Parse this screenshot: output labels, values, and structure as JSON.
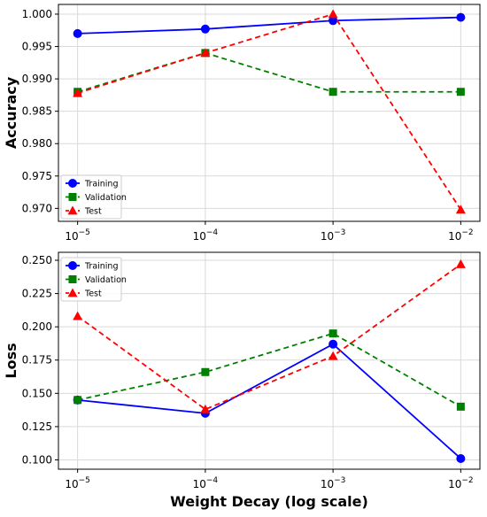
{
  "chart_data": [
    {
      "type": "line",
      "xscale": "log",
      "x": [
        "10^-5",
        "10^-4",
        "10^-3",
        "10^-2"
      ],
      "x_values": [
        1e-05,
        0.0001,
        0.001,
        0.01
      ],
      "xlabel": "",
      "ylabel": "Accuracy",
      "ylim": [
        0.968,
        1.0015
      ],
      "yticks": [
        "0.970",
        "0.975",
        "0.980",
        "0.985",
        "0.990",
        "0.995",
        "1.000"
      ],
      "ytick_values": [
        0.97,
        0.975,
        0.98,
        0.985,
        0.99,
        0.995,
        1.0
      ],
      "grid": true,
      "legend": "bottom-left",
      "series": [
        {
          "name": "Training",
          "values": [
            0.997,
            0.9977,
            0.999,
            0.9995
          ],
          "color": "#0000ff",
          "marker": "circle",
          "linestyle": "solid"
        },
        {
          "name": "Validation",
          "values": [
            0.988,
            0.994,
            0.988,
            0.988
          ],
          "color": "#008000",
          "marker": "square",
          "linestyle": "dashed"
        },
        {
          "name": "Test",
          "values": [
            0.9878,
            0.994,
            1.0,
            0.9698
          ],
          "color": "#ff0000",
          "marker": "triangle",
          "linestyle": "dashed"
        }
      ]
    },
    {
      "type": "line",
      "xscale": "log",
      "x": [
        "10^-5",
        "10^-4",
        "10^-3",
        "10^-2"
      ],
      "x_values": [
        1e-05,
        0.0001,
        0.001,
        0.01
      ],
      "xlabel": "Weight Decay (log scale)",
      "ylabel": "Loss",
      "ylim": [
        0.093,
        0.256
      ],
      "yticks": [
        "0.100",
        "0.125",
        "0.150",
        "0.175",
        "0.200",
        "0.225",
        "0.250"
      ],
      "ytick_values": [
        0.1,
        0.125,
        0.15,
        0.175,
        0.2,
        0.225,
        0.25
      ],
      "grid": true,
      "legend": "top-left",
      "series": [
        {
          "name": "Training",
          "values": [
            0.145,
            0.135,
            0.187,
            0.101
          ],
          "color": "#0000ff",
          "marker": "circle",
          "linestyle": "solid"
        },
        {
          "name": "Validation",
          "values": [
            0.145,
            0.166,
            0.195,
            0.14
          ],
          "color": "#008000",
          "marker": "square",
          "linestyle": "dashed"
        },
        {
          "name": "Test",
          "values": [
            0.208,
            0.138,
            0.178,
            0.247
          ],
          "color": "#ff0000",
          "marker": "triangle",
          "linestyle": "dashed"
        }
      ]
    }
  ]
}
